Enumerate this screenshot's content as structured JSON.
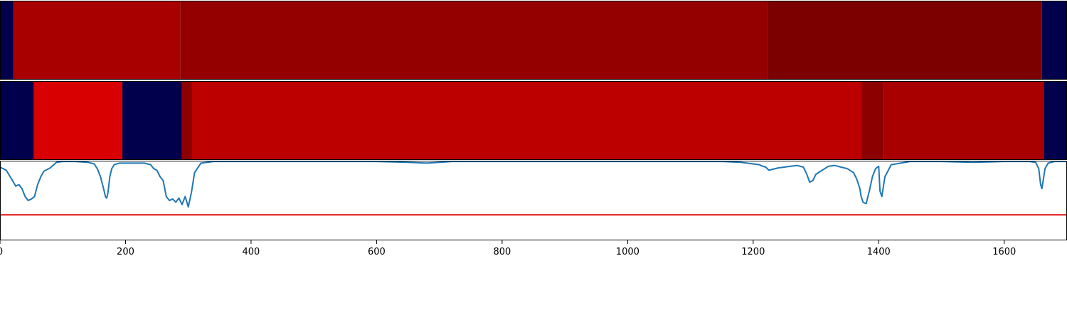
{
  "chart_data": [
    {
      "type": "heatmap",
      "panel": "top-band",
      "colormap": "seismic",
      "segments": [
        {
          "x0": 0,
          "x1": 21,
          "color": "#00004c"
        },
        {
          "x0": 21,
          "x1": 287,
          "color": "#a80000"
        },
        {
          "x0": 287,
          "x1": 1223,
          "color": "#940000"
        },
        {
          "x0": 1223,
          "x1": 1660,
          "color": "#7c0000"
        },
        {
          "x0": 1660,
          "x1": 1700,
          "color": "#00004c"
        }
      ]
    },
    {
      "type": "heatmap",
      "panel": "middle-band",
      "colormap": "seismic",
      "segments": [
        {
          "x0": 0,
          "x1": 54,
          "color": "#00004c"
        },
        {
          "x0": 54,
          "x1": 195,
          "color": "#d80000"
        },
        {
          "x0": 195,
          "x1": 290,
          "color": "#00004c"
        },
        {
          "x0": 290,
          "x1": 306,
          "color": "#8c0000"
        },
        {
          "x0": 306,
          "x1": 1373,
          "color": "#bc0000"
        },
        {
          "x0": 1373,
          "x1": 1408,
          "color": "#8c0000"
        },
        {
          "x0": 1408,
          "x1": 1663,
          "color": "#a80000"
        },
        {
          "x0": 1663,
          "x1": 1700,
          "color": "#00004c"
        }
      ]
    },
    {
      "type": "line",
      "panel": "bottom-plot",
      "xlim": [
        0,
        1700
      ],
      "ylim": [
        0,
        1
      ],
      "xticks": [
        0,
        200,
        400,
        600,
        800,
        1000,
        1200,
        1400,
        1600
      ],
      "threshold": 0.32,
      "colors": {
        "line": "#1f77b4",
        "threshold": "#e41a1c"
      },
      "series": [
        {
          "x": [
            0,
            10,
            20,
            25,
            30,
            35,
            40,
            45,
            50,
            55,
            60,
            65,
            70,
            80,
            90,
            100,
            120,
            140,
            150,
            155,
            160,
            165,
            168,
            170,
            172,
            175,
            178,
            182,
            190,
            200,
            210,
            220,
            230,
            240,
            245,
            250,
            255,
            260,
            265,
            270,
            275,
            280,
            285,
            290,
            295,
            300,
            305,
            310,
            320,
            340,
            400,
            500,
            600,
            650,
            680,
            700,
            720,
            800,
            1000,
            1150,
            1180,
            1200,
            1210,
            1215,
            1220,
            1225,
            1240,
            1260,
            1270,
            1280,
            1285,
            1290,
            1295,
            1300,
            1310,
            1320,
            1330,
            1340,
            1350,
            1360,
            1365,
            1370,
            1372,
            1375,
            1380,
            1385,
            1390,
            1395,
            1400,
            1402,
            1405,
            1410,
            1420,
            1450,
            1500,
            1550,
            1600,
            1640,
            1650,
            1655,
            1658,
            1660,
            1662,
            1665,
            1670,
            1680,
            1700
          ],
          "y": [
            0.92,
            0.88,
            0.75,
            0.68,
            0.7,
            0.65,
            0.55,
            0.5,
            0.52,
            0.55,
            0.7,
            0.8,
            0.87,
            0.91,
            0.98,
            0.99,
            0.99,
            0.98,
            0.96,
            0.9,
            0.8,
            0.65,
            0.55,
            0.53,
            0.6,
            0.8,
            0.9,
            0.95,
            0.97,
            0.97,
            0.97,
            0.97,
            0.97,
            0.95,
            0.9,
            0.88,
            0.8,
            0.75,
            0.55,
            0.5,
            0.52,
            0.48,
            0.53,
            0.45,
            0.55,
            0.42,
            0.6,
            0.85,
            0.97,
            0.99,
            0.99,
            0.99,
            0.99,
            0.98,
            0.97,
            0.98,
            0.99,
            0.99,
            0.99,
            0.99,
            0.98,
            0.96,
            0.95,
            0.93,
            0.92,
            0.88,
            0.91,
            0.93,
            0.94,
            0.92,
            0.84,
            0.73,
            0.75,
            0.83,
            0.88,
            0.93,
            0.94,
            0.92,
            0.9,
            0.85,
            0.77,
            0.65,
            0.55,
            0.48,
            0.46,
            0.62,
            0.8,
            0.9,
            0.93,
            0.62,
            0.55,
            0.8,
            0.95,
            0.99,
            0.99,
            0.98,
            0.99,
            0.99,
            0.98,
            0.9,
            0.7,
            0.65,
            0.75,
            0.9,
            0.97,
            0.99,
            0.99
          ]
        }
      ]
    }
  ]
}
